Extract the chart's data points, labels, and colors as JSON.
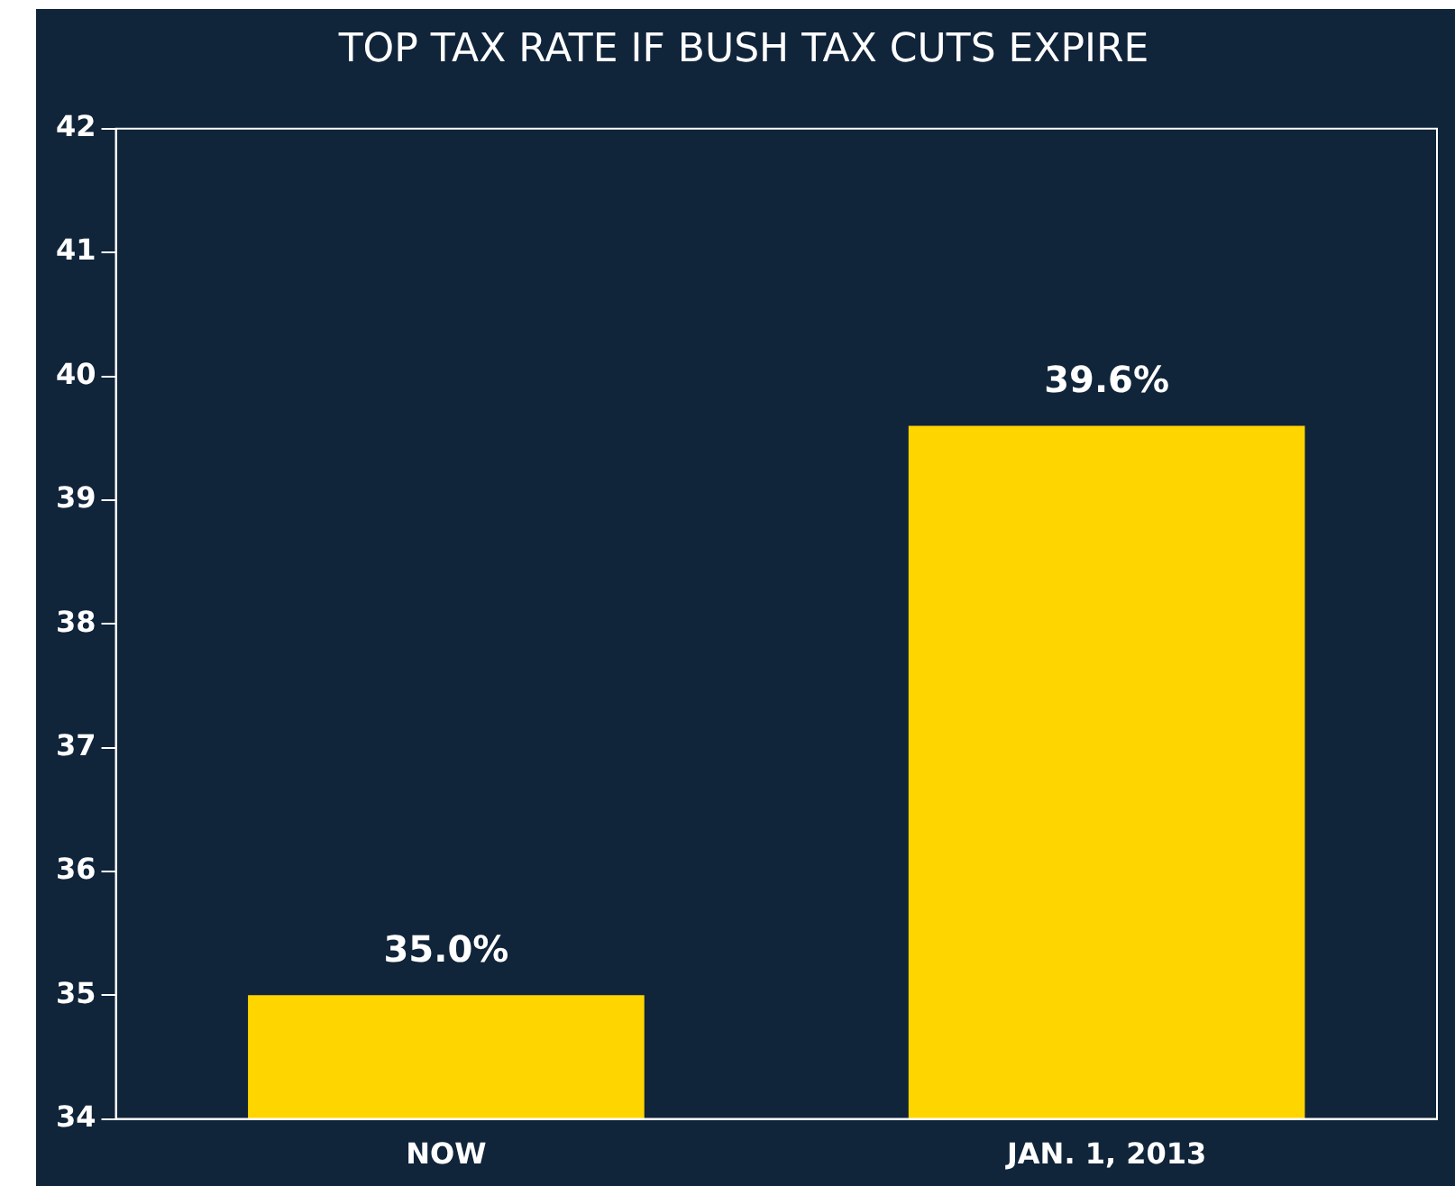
{
  "chart_data": {
    "type": "bar",
    "title": "TOP TAX RATE IF BUSH TAX CUTS EXPIRE",
    "categories": [
      "NOW",
      "JAN. 1, 2013"
    ],
    "values": [
      35.0,
      39.6
    ],
    "value_labels": [
      "35.0%",
      "39.6%"
    ],
    "color": "#ffd500",
    "ylim": [
      34,
      42
    ],
    "yticks": [
      34,
      35,
      36,
      37,
      38,
      39,
      40,
      41,
      42
    ],
    "grid": false,
    "legend": false
  }
}
